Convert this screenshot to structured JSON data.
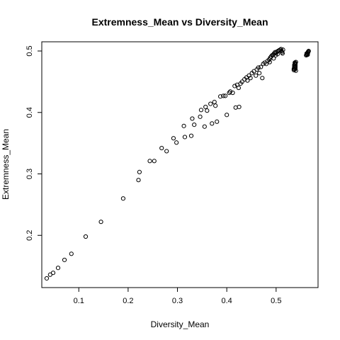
{
  "chart_data": {
    "type": "scatter",
    "title": "Extremness_Mean vs Diversity_Mean",
    "xlabel": "Diversity_Mean",
    "ylabel": "Extremness_Mean",
    "xlim": [
      0.025,
      0.585
    ],
    "ylim": [
      0.115,
      0.515
    ],
    "xticks": [
      0.1,
      0.2,
      0.3,
      0.4,
      0.5
    ],
    "yticks": [
      0.2,
      0.3,
      0.4,
      0.5
    ],
    "grid": false,
    "legend": "none",
    "points": [
      [
        0.035,
        0.13
      ],
      [
        0.042,
        0.136
      ],
      [
        0.048,
        0.139
      ],
      [
        0.058,
        0.147
      ],
      [
        0.071,
        0.16
      ],
      [
        0.085,
        0.17
      ],
      [
        0.114,
        0.198
      ],
      [
        0.145,
        0.222
      ],
      [
        0.19,
        0.26
      ],
      [
        0.221,
        0.29
      ],
      [
        0.223,
        0.303
      ],
      [
        0.244,
        0.321
      ],
      [
        0.253,
        0.321
      ],
      [
        0.268,
        0.342
      ],
      [
        0.278,
        0.337
      ],
      [
        0.292,
        0.358
      ],
      [
        0.298,
        0.351
      ],
      [
        0.313,
        0.378
      ],
      [
        0.315,
        0.36
      ],
      [
        0.328,
        0.362
      ],
      [
        0.33,
        0.39
      ],
      [
        0.334,
        0.38
      ],
      [
        0.346,
        0.393
      ],
      [
        0.348,
        0.404
      ],
      [
        0.355,
        0.377
      ],
      [
        0.357,
        0.409
      ],
      [
        0.36,
        0.403
      ],
      [
        0.367,
        0.414
      ],
      [
        0.37,
        0.382
      ],
      [
        0.375,
        0.417
      ],
      [
        0.377,
        0.411
      ],
      [
        0.38,
        0.385
      ],
      [
        0.387,
        0.426
      ],
      [
        0.393,
        0.427
      ],
      [
        0.397,
        0.427
      ],
      [
        0.4,
        0.396
      ],
      [
        0.405,
        0.432
      ],
      [
        0.407,
        0.434
      ],
      [
        0.412,
        0.432
      ],
      [
        0.416,
        0.443
      ],
      [
        0.418,
        0.408
      ],
      [
        0.421,
        0.445
      ],
      [
        0.424,
        0.44
      ],
      [
        0.425,
        0.409
      ],
      [
        0.428,
        0.447
      ],
      [
        0.431,
        0.45
      ],
      [
        0.436,
        0.454
      ],
      [
        0.44,
        0.457
      ],
      [
        0.442,
        0.452
      ],
      [
        0.445,
        0.46
      ],
      [
        0.448,
        0.456
      ],
      [
        0.451,
        0.464
      ],
      [
        0.455,
        0.467
      ],
      [
        0.459,
        0.46
      ],
      [
        0.461,
        0.47
      ],
      [
        0.464,
        0.473
      ],
      [
        0.466,
        0.464
      ],
      [
        0.469,
        0.474
      ],
      [
        0.472,
        0.456
      ],
      [
        0.474,
        0.479
      ],
      [
        0.477,
        0.481
      ],
      [
        0.48,
        0.479
      ],
      [
        0.483,
        0.484
      ],
      [
        0.486,
        0.486
      ],
      [
        0.488,
        0.489
      ],
      [
        0.49,
        0.491
      ],
      [
        0.492,
        0.493
      ],
      [
        0.494,
        0.494
      ],
      [
        0.496,
        0.496
      ],
      [
        0.498,
        0.498
      ],
      [
        0.5,
        0.497
      ],
      [
        0.502,
        0.499
      ],
      [
        0.504,
        0.5
      ],
      [
        0.506,
        0.501
      ],
      [
        0.508,
        0.502
      ],
      [
        0.51,
        0.503
      ],
      [
        0.511,
        0.5
      ],
      [
        0.512,
        0.498
      ],
      [
        0.513,
        0.496
      ],
      [
        0.514,
        0.502
      ],
      [
        0.487,
        0.482
      ],
      [
        0.495,
        0.488
      ],
      [
        0.499,
        0.493
      ],
      [
        0.503,
        0.495
      ],
      [
        0.536,
        0.469
      ],
      [
        0.536,
        0.471
      ],
      [
        0.537,
        0.473
      ],
      [
        0.537,
        0.475
      ],
      [
        0.537,
        0.477
      ],
      [
        0.538,
        0.479
      ],
      [
        0.538,
        0.481
      ],
      [
        0.538,
        0.47
      ],
      [
        0.539,
        0.472
      ],
      [
        0.539,
        0.474
      ],
      [
        0.539,
        0.476
      ],
      [
        0.539,
        0.478
      ],
      [
        0.539,
        0.48
      ],
      [
        0.54,
        0.482
      ],
      [
        0.54,
        0.468
      ],
      [
        0.561,
        0.493
      ],
      [
        0.562,
        0.494
      ],
      [
        0.563,
        0.495
      ],
      [
        0.563,
        0.496
      ],
      [
        0.564,
        0.497
      ],
      [
        0.565,
        0.498
      ],
      [
        0.565,
        0.499
      ],
      [
        0.566,
        0.5
      ],
      [
        0.562,
        0.496
      ],
      [
        0.564,
        0.494
      ]
    ]
  }
}
